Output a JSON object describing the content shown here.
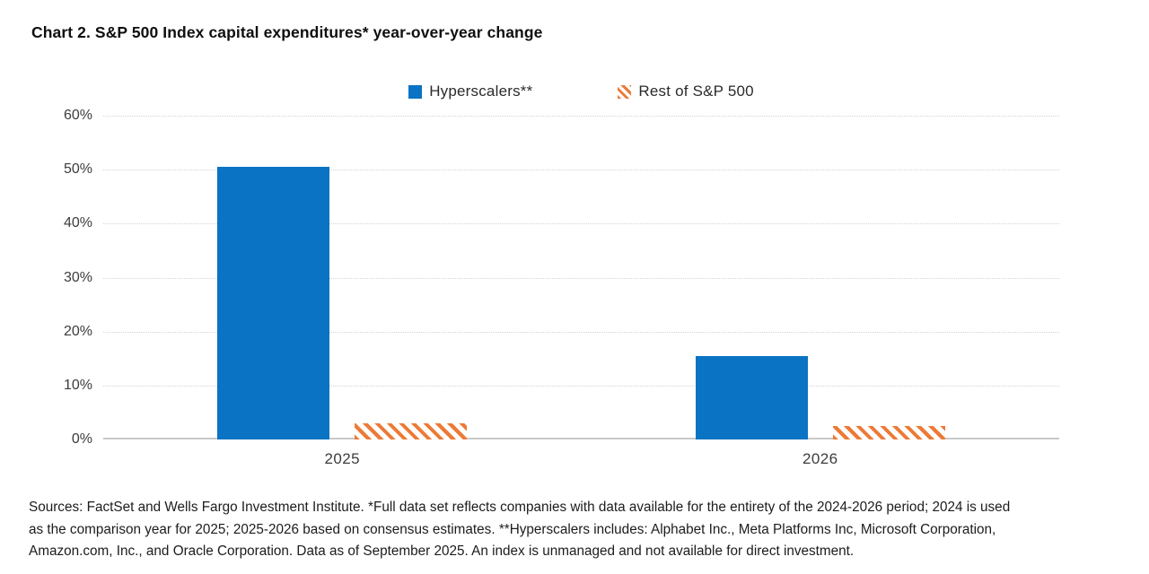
{
  "page": {
    "title": "Chart 2. S&P 500 Index capital expenditures* year-over-year change"
  },
  "chart_data": {
    "type": "bar",
    "title": "Chart 2. S&P 500 Index capital expenditures* year-over-year change",
    "categories": [
      "2025",
      "2026"
    ],
    "series": [
      {
        "name": "Hyperscalers**",
        "values": [
          50.5,
          15.5
        ],
        "color": "#0a73c3",
        "pattern": "solid"
      },
      {
        "name": "Rest of S&P 500",
        "values": [
          3,
          2.5
        ],
        "color": "#ed7a36",
        "pattern": "diagonal-hatch"
      }
    ],
    "xlabel": "",
    "ylabel": "",
    "ylim": [
      0,
      60
    ],
    "ytick_step": 10,
    "ytick_suffix": "%",
    "grid": true,
    "legend_position": "top-center"
  },
  "footnote": {
    "lines": [
      "Sources: FactSet and Wells Fargo Investment Institute. *Full data set reflects companies with data available for the entirety of the 2024-2026 period; 2024 is used",
      "as the comparison year for 2025; 2025-2026 based on consensus estimates. **Hyperscalers includes: Alphabet Inc., Meta Platforms Inc, Microsoft Corporation,",
      "Amazon.com, Inc., and Oracle Corporation. Data as of September 2025. An index is unmanaged and not available for direct investment."
    ]
  }
}
